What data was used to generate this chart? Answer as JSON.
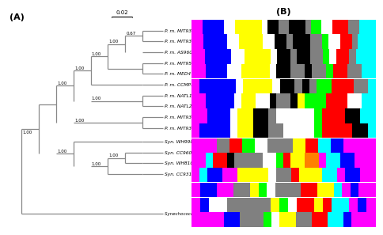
{
  "background": "#ffffff",
  "tree_color": "#888888",
  "taxa": [
    "P. m. MIT9312",
    "P. m. MIT9301",
    "P. m. AS9601",
    "P. m. MIT9515",
    "P. m. MED4",
    "P. m. CCMP1375",
    "P. m. NATL1A",
    "P. m. NATL2A*",
    "P. m. MIT9303",
    "P. m. MIT9313",
    "Syn. WH9902",
    "Syn. CC9605*",
    "Syn. WH8102",
    "Syn. CC9311*",
    "Synechococcus elongatus PCC6301"
  ],
  "row_segs": [
    [
      [
        "#ff00ff",
        2
      ],
      [
        "#0000ff",
        4
      ],
      [
        "#ffffff",
        2
      ],
      [
        "#ffff00",
        5
      ],
      [
        "#ffffff",
        1
      ],
      [
        "#000000",
        2
      ],
      [
        "#808080",
        2
      ],
      [
        "#000000",
        3
      ],
      [
        "#808080",
        1
      ],
      [
        "#00ff00",
        2
      ],
      [
        "#ffffff",
        2
      ],
      [
        "#ff0000",
        3
      ],
      [
        "#808080",
        2
      ],
      [
        "#00ffff",
        3
      ]
    ],
    [
      [
        "#ff00ff",
        2
      ],
      [
        "#0000ff",
        4
      ],
      [
        "#ffffff",
        2
      ],
      [
        "#ffff00",
        4
      ],
      [
        "#ffffff",
        2
      ],
      [
        "#000000",
        2
      ],
      [
        "#808080",
        1
      ],
      [
        "#000000",
        3
      ],
      [
        "#808080",
        2
      ],
      [
        "#00ff00",
        1
      ],
      [
        "#ffffff",
        2
      ],
      [
        "#ff0000",
        2
      ],
      [
        "#808080",
        1
      ],
      [
        "#00ffff",
        3
      ]
    ],
    [
      [
        "#ff00ff",
        2
      ],
      [
        "#0000ff",
        4
      ],
      [
        "#ffffff",
        2
      ],
      [
        "#ffff00",
        4
      ],
      [
        "#ffffff",
        1
      ],
      [
        "#000000",
        2
      ],
      [
        "#808080",
        1
      ],
      [
        "#000000",
        2
      ],
      [
        "#808080",
        2
      ],
      [
        "#00ff00",
        1
      ],
      [
        "#ffffff",
        1
      ],
      [
        "#ff0000",
        2
      ],
      [
        "#808080",
        1
      ],
      [
        "#00ffff",
        3
      ]
    ],
    [
      [
        "#ff00ff",
        2
      ],
      [
        "#0000ff",
        3
      ],
      [
        "#ffffff",
        2
      ],
      [
        "#ffff00",
        4
      ],
      [
        "#ffffff",
        1
      ],
      [
        "#000000",
        2
      ],
      [
        "#808080",
        2
      ],
      [
        "#000000",
        1
      ],
      [
        "#808080",
        2
      ],
      [
        "#00ff00",
        1
      ],
      [
        "#ff0000",
        2
      ],
      [
        "#808080",
        2
      ],
      [
        "#00ffff",
        2
      ]
    ],
    [
      [
        "#ff00ff",
        1
      ],
      [
        "#0000ff",
        5
      ],
      [
        "#ffffff",
        1
      ],
      [
        "#ffff00",
        4
      ],
      [
        "#ffffff",
        1
      ],
      [
        "#000000",
        2
      ],
      [
        "#808080",
        1
      ],
      [
        "#000000",
        1
      ],
      [
        "#808080",
        1
      ],
      [
        "#00ff00",
        2
      ],
      [
        "#ff0000",
        3
      ],
      [
        "#808080",
        2
      ],
      [
        "#00ffff",
        1
      ]
    ],
    [
      [
        "#ff00ff",
        2
      ],
      [
        "#0000ff",
        4
      ],
      [
        "#ffffff",
        1
      ],
      [
        "#ffff00",
        2
      ],
      [
        "#ffffff",
        2
      ],
      [
        "#000000",
        1
      ],
      [
        "#808080",
        2
      ],
      [
        "#000000",
        1
      ],
      [
        "#ffff00",
        1
      ],
      [
        "#00ff00",
        3
      ],
      [
        "#ff0000",
        3
      ],
      [
        "#ffffff",
        2
      ],
      [
        "#00ffff",
        2
      ]
    ],
    [
      [
        "#ff00ff",
        2
      ],
      [
        "#0000ff",
        3
      ],
      [
        "#ffffff",
        1
      ],
      [
        "#ffff00",
        2
      ],
      [
        "#000000",
        2
      ],
      [
        "#808080",
        1
      ],
      [
        "#ffffff",
        5
      ],
      [
        "#00ff00",
        1
      ],
      [
        "#ff0000",
        3
      ],
      [
        "#000000",
        2
      ],
      [
        "#00ffff",
        2
      ]
    ],
    [
      [
        "#ff00ff",
        1
      ],
      [
        "#0000ff",
        4
      ],
      [
        "#ffffff",
        1
      ],
      [
        "#ffff00",
        2
      ],
      [
        "#000000",
        2
      ],
      [
        "#808080",
        2
      ],
      [
        "#ffffff",
        4
      ],
      [
        "#00ff00",
        1
      ],
      [
        "#ff0000",
        4
      ],
      [
        "#000000",
        2
      ],
      [
        "#00ffff",
        1
      ]
    ],
    [
      [
        "#ff00ff",
        4
      ],
      [
        "#808080",
        2
      ],
      [
        "#ff0000",
        2
      ],
      [
        "#00ff00",
        2
      ],
      [
        "#ffffff",
        2
      ],
      [
        "#808080",
        4
      ],
      [
        "#ffff00",
        2
      ],
      [
        "#ff0000",
        2
      ],
      [
        "#00ffff",
        2
      ],
      [
        "#0000ff",
        2
      ],
      [
        "#ff00ff",
        5
      ]
    ],
    [
      [
        "#ff00ff",
        2
      ],
      [
        "#00ffff",
        1
      ],
      [
        "#ff0000",
        2
      ],
      [
        "#000000",
        1
      ],
      [
        "#808080",
        4
      ],
      [
        "#ffffff",
        2
      ],
      [
        "#00ff00",
        1
      ],
      [
        "#ff0000",
        1
      ],
      [
        "#ffff00",
        2
      ],
      [
        "#ff8000",
        2
      ],
      [
        "#ff00ff",
        1
      ],
      [
        "#00ffff",
        2
      ],
      [
        "#0000ff",
        2
      ],
      [
        "#ff00ff",
        3
      ]
    ],
    [
      [
        "#ff00ff",
        1
      ],
      [
        "#00ffff",
        1
      ],
      [
        "#0000ff",
        2
      ],
      [
        "#ff00ff",
        2
      ],
      [
        "#ffff00",
        4
      ],
      [
        "#ffffff",
        1
      ],
      [
        "#808080",
        2
      ],
      [
        "#ff0000",
        1
      ],
      [
        "#ffff00",
        3
      ],
      [
        "#00ffff",
        2
      ],
      [
        "#ff00ff",
        1
      ],
      [
        "#0000ff",
        2
      ],
      [
        "#ff00ff",
        2
      ]
    ],
    [
      [
        "#ff00ff",
        1
      ],
      [
        "#0000ff",
        2
      ],
      [
        "#ff00ff",
        2
      ],
      [
        "#808080",
        2
      ],
      [
        "#ffff00",
        1
      ],
      [
        "#00ff00",
        1
      ],
      [
        "#ffffff",
        1
      ],
      [
        "#808080",
        3
      ],
      [
        "#ff0000",
        2
      ],
      [
        "#ffff00",
        2
      ],
      [
        "#00ffff",
        1
      ],
      [
        "#ff00ff",
        1
      ],
      [
        "#0000ff",
        1
      ],
      [
        "#ff00ff",
        2
      ]
    ],
    [
      [
        "#ff00ff",
        1
      ],
      [
        "#0000ff",
        1
      ],
      [
        "#ffffff",
        2
      ],
      [
        "#808080",
        5
      ],
      [
        "#ffff00",
        1
      ],
      [
        "#00ff00",
        1
      ],
      [
        "#ffffff",
        1
      ],
      [
        "#ff0000",
        2
      ],
      [
        "#ffff00",
        1
      ],
      [
        "#ff0000",
        1
      ],
      [
        "#00ffff",
        2
      ],
      [
        "#ff00ff",
        1
      ],
      [
        "#0000ff",
        1
      ],
      [
        "#ff00ff",
        1
      ]
    ],
    [
      [
        "#ff00ff",
        4
      ],
      [
        "#0000ff",
        2
      ],
      [
        "#808080",
        3
      ],
      [
        "#00ff00",
        1
      ],
      [
        "#ffffff",
        1
      ],
      [
        "#ffff00",
        2
      ],
      [
        "#808080",
        2
      ],
      [
        "#ff0000",
        2
      ],
      [
        "#00ffff",
        2
      ],
      [
        "#0000ff",
        1
      ],
      [
        "#ff00ff",
        3
      ]
    ]
  ]
}
